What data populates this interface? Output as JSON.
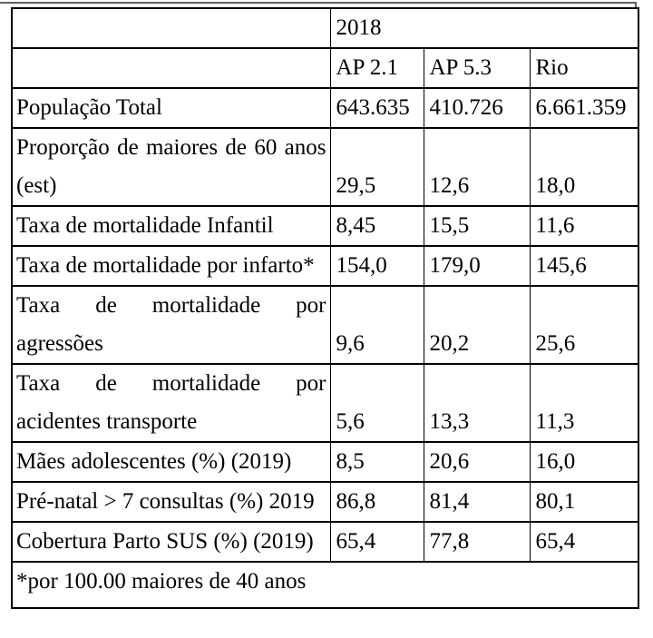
{
  "table": {
    "year_header": "2018",
    "column_headers": [
      "AP 2.1",
      "AP 5.3",
      "Rio"
    ],
    "rows": [
      {
        "label_lines": [
          "População Total"
        ],
        "values": [
          "643.635",
          "410.726",
          "6.661.359"
        ]
      },
      {
        "label_lines": [
          "Proporção de maiores de 60 anos",
          "(est)"
        ],
        "values": [
          "29,5",
          "12,6",
          "18,0"
        ]
      },
      {
        "label_lines": [
          "Taxa de mortalidade Infantil"
        ],
        "values": [
          "8,45",
          "15,5",
          "11,6"
        ]
      },
      {
        "label_lines": [
          "Taxa de mortalidade por infarto*"
        ],
        "values": [
          "154,0",
          "179,0",
          "145,6"
        ]
      },
      {
        "label_lines": [
          "Taxa de mortalidade por",
          "agressões"
        ],
        "values": [
          "9,6",
          "20,2",
          "25,6"
        ]
      },
      {
        "label_lines": [
          "Taxa de mortalidade por",
          "acidentes transporte"
        ],
        "values": [
          "5,6",
          "13,3",
          "11,3"
        ]
      },
      {
        "label_lines": [
          "Mães adolescentes (%) (2019)"
        ],
        "values": [
          "8,5",
          "20,6",
          "16,0"
        ]
      },
      {
        "label_lines": [
          "Pré-natal > 7 consultas (%) 2019"
        ],
        "values": [
          "86,8",
          "81,4",
          "80,1"
        ]
      },
      {
        "label_lines": [
          "Cobertura Parto SUS (%) (2019)"
        ],
        "values": [
          "65,4",
          "77,8",
          "65,4"
        ]
      }
    ],
    "footnote": "*por 100.00 maiores de 40 anos"
  },
  "colors": {
    "border": "#000000",
    "background": "#ffffff",
    "top_rule": "#616161"
  }
}
